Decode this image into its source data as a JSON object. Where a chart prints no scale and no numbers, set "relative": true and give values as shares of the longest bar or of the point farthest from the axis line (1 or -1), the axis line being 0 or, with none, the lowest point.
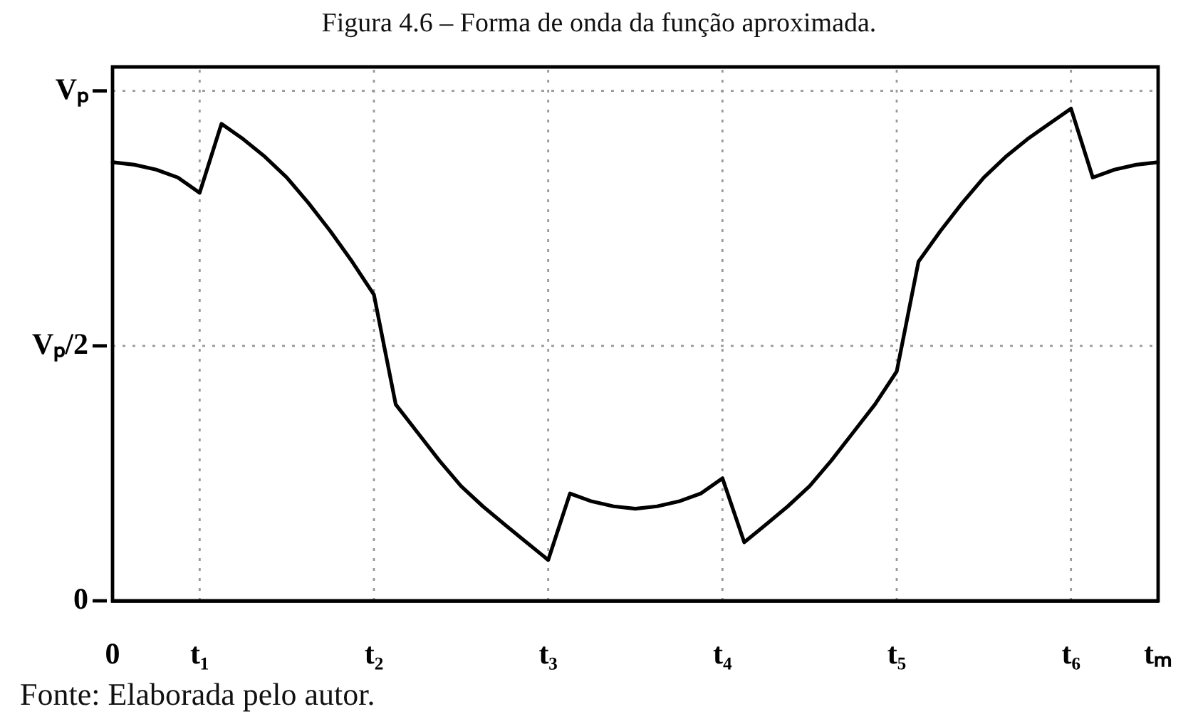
{
  "chart_data": {
    "type": "line",
    "title": "Figura 4.6 – Forma de onda da função aproximada.",
    "annotations": [
      "Fonte: Elaborada pelo autor.",
      "0"
    ],
    "relative": true,
    "categories": [
      "0",
      null,
      null,
      null,
      "t₁",
      null,
      null,
      null,
      null,
      null,
      null,
      null,
      "t₂",
      null,
      null,
      null,
      null,
      null,
      null,
      null,
      "t₃",
      null,
      null,
      null,
      null,
      null,
      null,
      null,
      "t₄",
      null,
      null,
      null,
      null,
      null,
      null,
      null,
      "t₅",
      null,
      null,
      null,
      null,
      null,
      null,
      null,
      "t₆",
      null,
      null,
      null,
      "tₘ"
    ],
    "series": [
      {
        "color": "#000000",
        "values": [
          0.891,
          0.886,
          0.876,
          0.86,
          0.829,
          0.969,
          0.938,
          0.902,
          0.86,
          0.808,
          0.751,
          0.689,
          0.622,
          0.399,
          0.342,
          0.285,
          0.233,
          0.192,
          0.155,
          0.119,
          0.083,
          0.218,
          0.202,
          0.192,
          0.187,
          0.192,
          0.202,
          0.218,
          0.249,
          0.119,
          0.155,
          0.192,
          0.233,
          0.285,
          0.342,
          0.399,
          0.466,
          0.689,
          0.751,
          0.808,
          0.86,
          0.902,
          0.938,
          0.969,
          1,
          0.86,
          0.876,
          0.886,
          0.891
        ]
      }
    ],
    "ref_lines": [
      {
        "axis": "y",
        "value": 0.518,
        "label": "Vₚ/2",
        "color": "#999999",
        "line_style": "dotted"
      },
      {
        "axis": "y",
        "value": 1.036,
        "label": "Vₚ",
        "color": "#999999",
        "line_style": "dotted"
      }
    ],
    "grid": "x",
    "legend": false,
    "marker": "none",
    "line_style": "solid"
  }
}
